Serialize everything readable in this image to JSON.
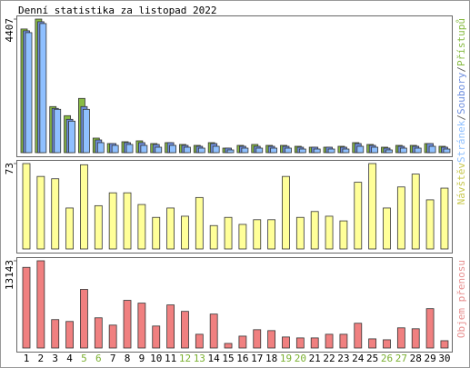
{
  "title": "Denní statistika za listopad 2022",
  "legend_separator": "/",
  "chart_data": [
    {
      "type": "bar",
      "ylim": [
        0,
        4407
      ],
      "yticks": [
        4407
      ],
      "series": [
        {
          "name": "Přístupů",
          "color": "#88bb44",
          "values": [
            4080,
            4407,
            1520,
            1220,
            1790,
            480,
            300,
            360,
            390,
            300,
            330,
            270,
            240,
            330,
            150,
            240,
            270,
            240,
            240,
            210,
            180,
            180,
            210,
            330,
            270,
            180,
            240,
            240,
            300,
            210
          ]
        },
        {
          "name": "Soubory",
          "color": "#6f8fdf",
          "values": [
            4020,
            4320,
            1460,
            1100,
            1520,
            420,
            300,
            330,
            330,
            270,
            330,
            240,
            210,
            300,
            150,
            210,
            210,
            210,
            210,
            180,
            180,
            180,
            180,
            300,
            240,
            150,
            210,
            210,
            300,
            180
          ]
        },
        {
          "name": "Stránek",
          "color": "#8fc0ff",
          "values": [
            3960,
            4260,
            1430,
            1040,
            1430,
            330,
            240,
            270,
            240,
            180,
            240,
            180,
            150,
            210,
            90,
            150,
            150,
            150,
            150,
            120,
            120,
            120,
            120,
            210,
            180,
            90,
            150,
            150,
            210,
            120
          ]
        }
      ]
    },
    {
      "type": "bar",
      "ylim": [
        0,
        73
      ],
      "yticks": [
        73
      ],
      "series": [
        {
          "name": "Návštěv",
          "color": "#ffff99",
          "label_color": "#c8c850",
          "values": [
            73,
            62,
            60,
            35,
            72,
            37,
            48,
            48,
            38,
            27,
            35,
            28,
            44,
            20,
            27,
            21,
            25,
            25,
            62,
            27,
            32,
            28,
            24,
            57,
            73,
            35,
            53,
            64,
            42,
            52
          ]
        }
      ]
    },
    {
      "type": "bar",
      "ylim": [
        0,
        13143
      ],
      "yticks": [
        13143
      ],
      "categories": [
        "1",
        "2",
        "3",
        "4",
        "5",
        "6",
        "7",
        "8",
        "9",
        "10",
        "11",
        "12",
        "13",
        "14",
        "15",
        "16",
        "17",
        "18",
        "19",
        "20",
        "21",
        "22",
        "23",
        "24",
        "25",
        "26",
        "27",
        "28",
        "29",
        "30"
      ],
      "weekend": [
        false,
        false,
        false,
        false,
        true,
        true,
        false,
        false,
        false,
        false,
        false,
        true,
        true,
        false,
        false,
        false,
        false,
        false,
        true,
        true,
        false,
        false,
        false,
        false,
        false,
        true,
        true,
        false,
        false,
        false
      ],
      "weekend_color": "#7ab030",
      "series": [
        {
          "name": "Objem přenosu",
          "color": "#f08080",
          "label_color": "#e89090",
          "values": [
            12150,
            13143,
            4280,
            4000,
            8830,
            4550,
            3450,
            7180,
            6760,
            3310,
            6490,
            5520,
            2070,
            5110,
            690,
            1790,
            2760,
            2620,
            1660,
            1520,
            1520,
            2070,
            2070,
            3730,
            1380,
            1240,
            3040,
            2900,
            5930,
            1100
          ]
        }
      ]
    }
  ]
}
